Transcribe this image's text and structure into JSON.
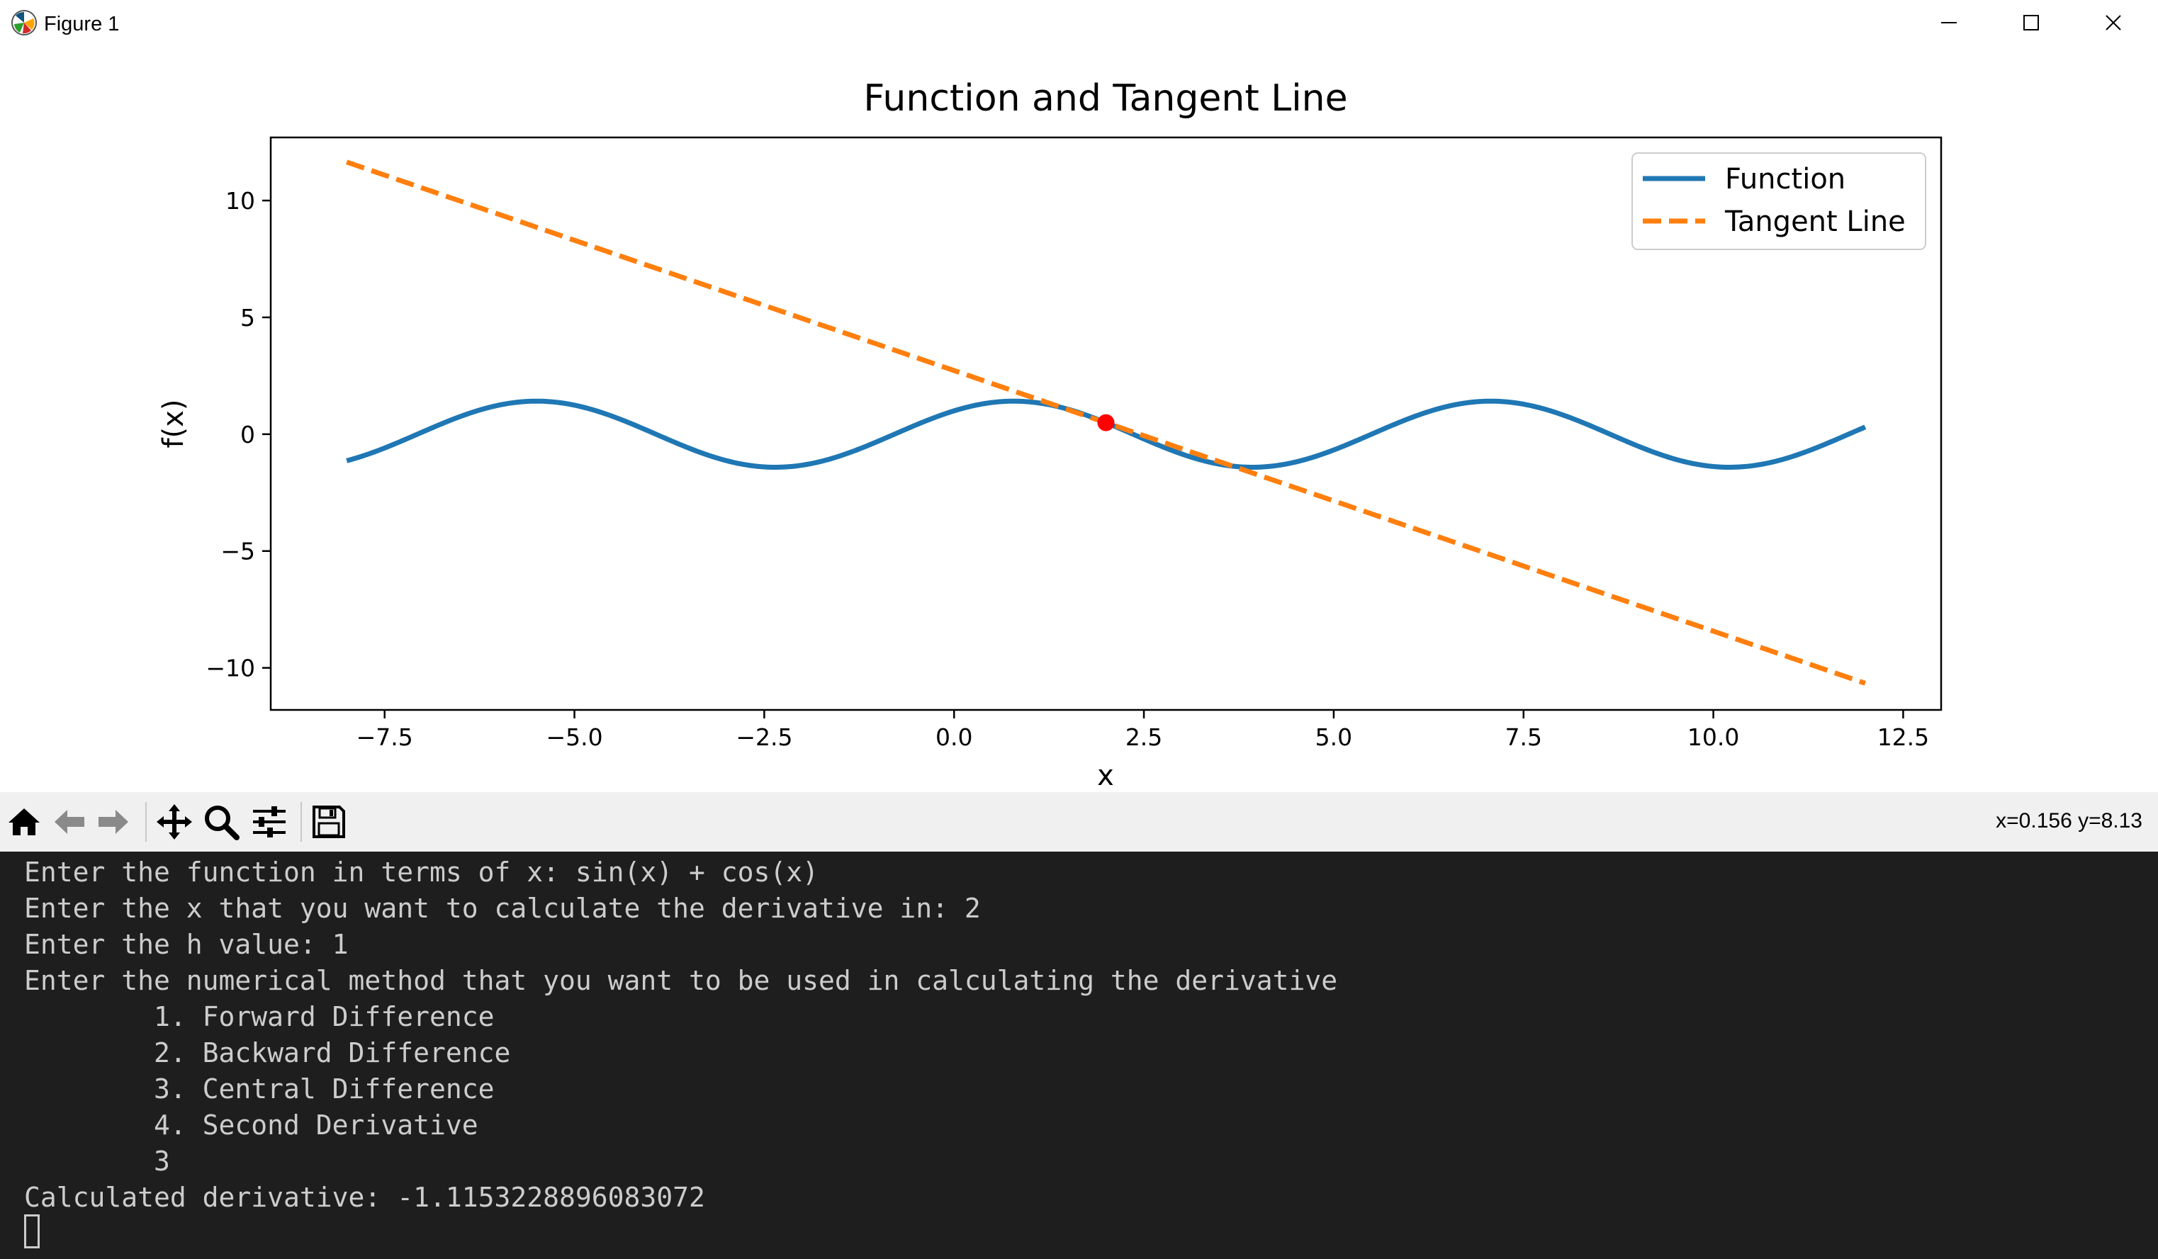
{
  "window": {
    "title": "Figure 1",
    "icon": "matplotlib-icon",
    "controls": [
      "minimize-icon",
      "maximize-icon",
      "close-icon"
    ]
  },
  "chart_data": {
    "type": "line",
    "title": "Function and Tangent Line",
    "xlabel": "x",
    "ylabel": "f(x)",
    "xlim": [
      -9,
      13
    ],
    "ylim": [
      -11.8,
      12.7
    ],
    "xticks": [
      -7.5,
      -5.0,
      -2.5,
      0.0,
      2.5,
      5.0,
      7.5,
      10.0,
      12.5
    ],
    "xtick_labels": [
      "−7.5",
      "−5.0",
      "−2.5",
      "0.0",
      "2.5",
      "5.0",
      "7.5",
      "10.0",
      "12.5"
    ],
    "yticks": [
      -10,
      -5,
      0,
      5,
      10
    ],
    "ytick_labels": [
      "−10",
      "−5",
      "0",
      "5",
      "10"
    ],
    "grid": false,
    "legend_position": "top-right",
    "series": [
      {
        "name": "Function",
        "expression": "sin(x) + cos(x)",
        "x_range": [
          -8,
          12
        ],
        "color": "#1f77b4",
        "style": "solid"
      },
      {
        "name": "Tangent Line",
        "slope": -1.1153228896083072,
        "through": [
          2,
          0.4931505902785393
        ],
        "x_range": [
          -8,
          12
        ],
        "color": "#ff7f0e",
        "style": "dashed"
      }
    ],
    "point": {
      "x": 2,
      "y": 0.4931505902785393,
      "color": "#ff0000"
    }
  },
  "toolbar": {
    "items": [
      "home-icon",
      "back-icon",
      "forward-icon",
      "pan-icon",
      "zoom-icon",
      "configure-subplots-icon",
      "save-icon"
    ],
    "coordinates": "x=0.156 y=8.13"
  },
  "console": {
    "lines": [
      "Enter the function in terms of x: sin(x) + cos(x)",
      "Enter the x that you want to calculate the derivative in: 2",
      "Enter the h value: 1",
      "Enter the numerical method that you want to be used in calculating the derivative",
      "        1. Forward Difference",
      "        2. Backward Difference",
      "        3. Central Difference",
      "        4. Second Derivative",
      "        3",
      "Calculated derivative: -1.1153228896083072"
    ]
  },
  "colors": {
    "function": "#1f77b4",
    "tangent": "#ff7f0e",
    "point": "#ff0000",
    "console_bg": "#1e1e1e",
    "console_text": "#cccccc",
    "toolbar_bg": "#f0f0f0"
  }
}
